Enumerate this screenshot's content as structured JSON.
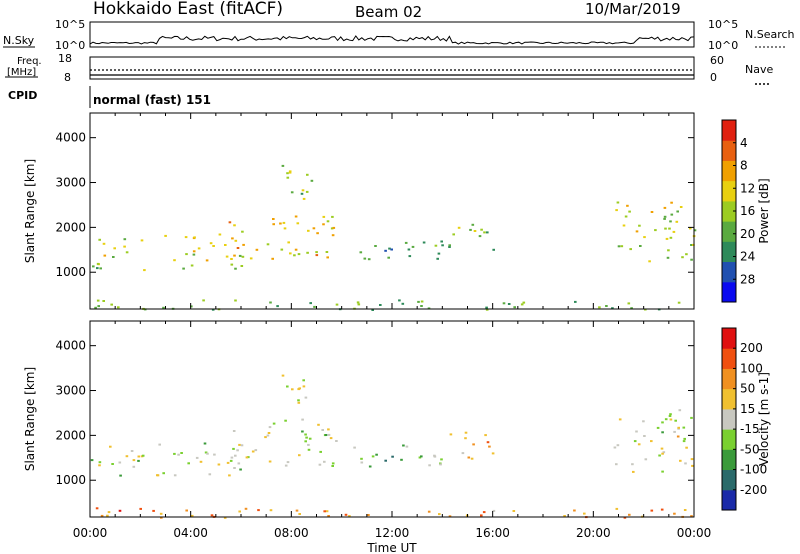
{
  "header": {
    "title": "Hokkaido East (fitACF)",
    "beam": "Beam 02",
    "date": "10/Mar/2019"
  },
  "top_panels": {
    "nsky_label": "N.Sky",
    "nsky_ticks": [
      "10^5",
      "10^0"
    ],
    "nsearch_label": "N.Search",
    "nsearch_ticks": [
      "10^5",
      "10^0"
    ],
    "freq_label_1": "Freq.",
    "freq_label_2": "[MHz]",
    "freq_ticks": [
      "18",
      "8"
    ],
    "nave_label": "Nave",
    "nave_ticks": [
      "60",
      "0"
    ],
    "cpid_label": "CPID",
    "cpid_value": "normal (fast) 151"
  },
  "chart_data": [
    {
      "type": "heatmap",
      "name": "power",
      "ylabel": "Slant Range [km]",
      "xlabel": "",
      "yticks": [
        "1000",
        "2000",
        "3000",
        "4000"
      ],
      "ylim": [
        180,
        4550
      ],
      "xlim_hours": [
        0,
        24
      ],
      "colorbar_label": "Power [dB]",
      "colorbar_ticks": [
        "4",
        "8",
        "12",
        "16",
        "20",
        "24",
        "28"
      ],
      "colors": [
        "#0a0af0",
        "#2050b0",
        "#2e8a5a",
        "#5aaa40",
        "#9ccc22",
        "#e8d010",
        "#f0a000",
        "#e86010",
        "#e02010"
      ],
      "regions": [
        {
          "t": [
            0.0,
            2.2
          ],
          "r": [
            1050,
            1800
          ],
          "level": 0.5
        },
        {
          "t": [
            2.6,
            6.0
          ],
          "r": [
            1100,
            1900
          ],
          "level": 0.55
        },
        {
          "t": [
            5.5,
            9.8
          ],
          "r": [
            1300,
            2300
          ],
          "level": 0.65
        },
        {
          "t": [
            7.6,
            8.8
          ],
          "r": [
            2300,
            3400
          ],
          "level": 0.45
        },
        {
          "t": [
            10.2,
            14.5
          ],
          "r": [
            1300,
            1800
          ],
          "level": 0.35
        },
        {
          "t": [
            14.0,
            16.0
          ],
          "r": [
            1500,
            2100
          ],
          "level": 0.45
        },
        {
          "t": [
            20.8,
            24.0
          ],
          "r": [
            1200,
            2600
          ],
          "level": 0.55
        },
        {
          "t": [
            0.0,
            24.0
          ],
          "r": [
            180,
            400
          ],
          "level": 0.4
        }
      ]
    },
    {
      "type": "heatmap",
      "name": "velocity",
      "ylabel": "Slant Range [km]",
      "xlabel": "Time UT",
      "xticks": [
        "00:00",
        "04:00",
        "08:00",
        "12:00",
        "16:00",
        "20:00",
        "00:00"
      ],
      "yticks": [
        "1000",
        "2000",
        "3000",
        "4000"
      ],
      "ylim": [
        180,
        4550
      ],
      "xlim_hours": [
        0,
        24
      ],
      "colorbar_label": "Velocity [m s-1]",
      "colorbar_ticks": [
        "200",
        "100",
        "50",
        "15",
        "-15",
        "-50",
        "-100",
        "-200"
      ],
      "colors": [
        "#1a2aa8",
        "#2a6a6a",
        "#3a9a3a",
        "#7ad030",
        "#c8c8c0",
        "#f0c030",
        "#f09020",
        "#f05010",
        "#e01010"
      ],
      "regions": [
        {
          "t": [
            0.0,
            2.2
          ],
          "r": [
            1050,
            1800
          ],
          "level": 0.5
        },
        {
          "t": [
            2.6,
            6.0
          ],
          "r": [
            1100,
            1900
          ],
          "level": 0.5
        },
        {
          "t": [
            5.5,
            9.8
          ],
          "r": [
            1300,
            2300
          ],
          "level": 0.5
        },
        {
          "t": [
            7.6,
            8.8
          ],
          "r": [
            2300,
            3400
          ],
          "level": 0.5
        },
        {
          "t": [
            10.2,
            14.5
          ],
          "r": [
            1300,
            1800
          ],
          "level": 0.35
        },
        {
          "t": [
            14.0,
            16.0
          ],
          "r": [
            1500,
            2100
          ],
          "level": 0.68
        },
        {
          "t": [
            20.8,
            24.0
          ],
          "r": [
            1200,
            2600
          ],
          "level": 0.5
        },
        {
          "t": [
            0.0,
            24.0
          ],
          "r": [
            180,
            400
          ],
          "level": 0.72
        }
      ]
    }
  ]
}
